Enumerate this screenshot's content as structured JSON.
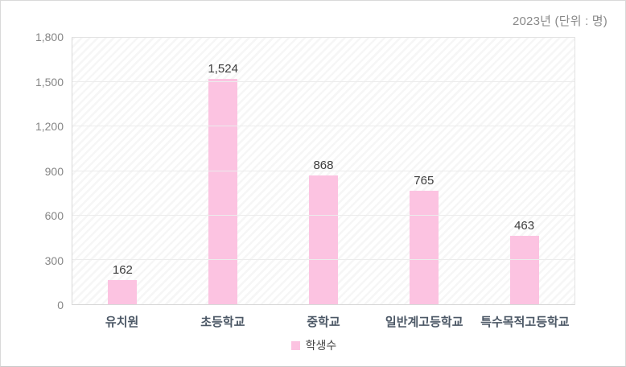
{
  "chart_data": {
    "type": "bar",
    "title": "2023년 (단위 : 명)",
    "categories": [
      "유치원",
      "초등학교",
      "중학교",
      "일반계고등학교",
      "특수목적고등학교"
    ],
    "values": [
      162,
      1524,
      868,
      765,
      463
    ],
    "value_labels": [
      "162",
      "1,524",
      "868",
      "765",
      "463"
    ],
    "series_name": "학생수",
    "xlabel": "",
    "ylabel": "",
    "ylim": [
      0,
      1800
    ],
    "yticks": [
      0,
      300,
      600,
      900,
      1200,
      1500,
      1800
    ],
    "ytick_labels": [
      "0",
      "300",
      "600",
      "900",
      "1,200",
      "1,500",
      "1,800"
    ],
    "grid": true,
    "legend_position": "bottom",
    "background_pattern": "diagonal-hatch"
  },
  "colors": {
    "bar": "#fcc3e1",
    "legend_swatch": "#fcc3e1",
    "title_text": "#898989",
    "tick_text": "#858585",
    "value_text": "#3d3d3d",
    "category_text": "#4c5866",
    "gridline": "#ececec",
    "panel_border": "#d9d9d9"
  },
  "legend": {
    "label": "학생수"
  }
}
